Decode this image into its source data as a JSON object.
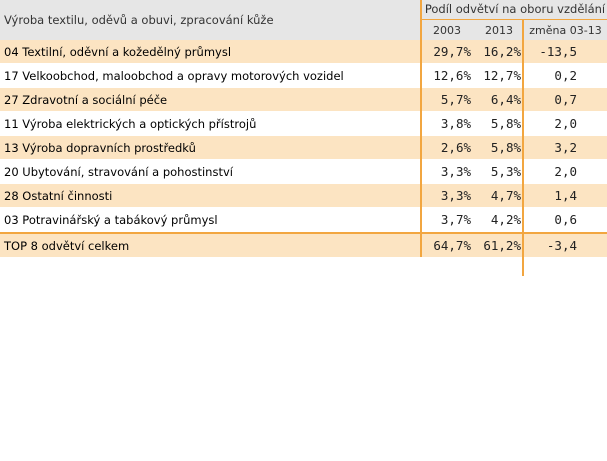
{
  "table": {
    "header": {
      "sector_title": "Výroba textilu, oděvů a obuvi, zpracování kůže",
      "group_title": "Podíl odvětví na oboru vzdělání",
      "col_2003": "2003",
      "col_2013": "2013",
      "col_change": "změna 03-13"
    },
    "rows": [
      {
        "label": "04 Textilní, oděvní a kožedělný průmysl",
        "v2003": "29,7%",
        "v2013": "16,2%",
        "change": "-13,5"
      },
      {
        "label": "17 Velkoobchod, maloobchod a opravy motorových vozidel",
        "v2003": "12,6%",
        "v2013": "12,7%",
        "change": "0,2"
      },
      {
        "label": "27 Zdravotní a sociální péče",
        "v2003": "5,7%",
        "v2013": "6,4%",
        "change": "0,7"
      },
      {
        "label": "11 Výroba elektrických a optických přístrojů",
        "v2003": "3,8%",
        "v2013": "5,8%",
        "change": "2,0"
      },
      {
        "label": "13 Výroba dopravních prostředků",
        "v2003": "2,6%",
        "v2013": "5,8%",
        "change": "3,2"
      },
      {
        "label": "20 Ubytování, stravování a pohostinství",
        "v2003": "3,3%",
        "v2013": "5,3%",
        "change": "2,0"
      },
      {
        "label": "28 Ostatní činnosti",
        "v2003": "3,3%",
        "v2013": "4,7%",
        "change": "1,4"
      },
      {
        "label": "03 Potravinářský a tabákový průmysl",
        "v2003": "3,7%",
        "v2013": "4,2%",
        "change": "0,6"
      }
    ],
    "total": {
      "label": "TOP 8 odvětví celkem",
      "v2003": "64,7%",
      "v2013": "61,2%",
      "change": "-3,4"
    }
  }
}
